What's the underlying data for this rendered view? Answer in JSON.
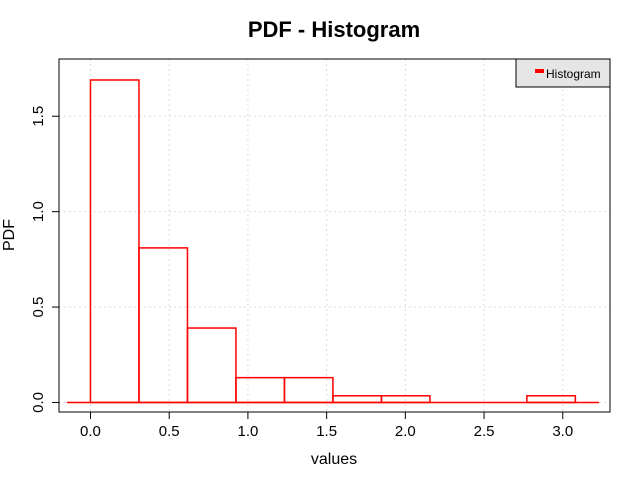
{
  "chart_data": {
    "type": "bar",
    "title": "PDF - Histogram",
    "xlabel": "values",
    "ylabel": "PDF",
    "xlim": [
      -0.2,
      3.3
    ],
    "ylim": [
      -0.05,
      1.8
    ],
    "x_ticks": [
      0.0,
      0.5,
      1.0,
      1.5,
      2.0,
      2.5,
      3.0
    ],
    "x_tick_labels": [
      "0.0",
      "0.5",
      "1.0",
      "1.5",
      "2.0",
      "2.5",
      "3.0"
    ],
    "y_ticks": [
      0.0,
      0.5,
      1.0,
      1.5
    ],
    "y_tick_labels": [
      "0.0",
      "0.5",
      "1.0",
      "1.5"
    ],
    "grid": true,
    "legend_position": "top-right",
    "series": [
      {
        "name": "Histogram",
        "color": "#ff0000",
        "bin_edges": [
          0.0,
          0.308,
          0.616,
          0.924,
          1.232,
          1.54,
          1.848,
          2.156,
          2.464,
          2.772,
          3.08
        ],
        "values": [
          1.69,
          0.81,
          0.39,
          0.13,
          0.13,
          0.035,
          0.035,
          0.0,
          0.0,
          0.035
        ],
        "baseline_extent": [
          -0.15,
          3.23
        ]
      }
    ]
  }
}
